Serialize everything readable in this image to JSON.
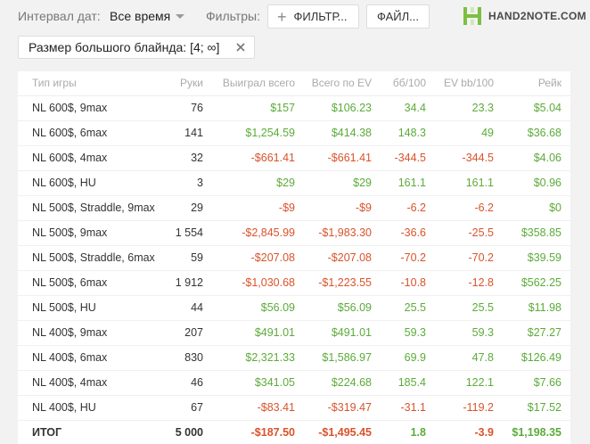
{
  "toolbar": {
    "date_label": "Интервал дат:",
    "date_value": "Все время",
    "filters_label": "Фильтры:",
    "filter_button": "ФИЛЬТР...",
    "file_button": "ФАЙЛ..."
  },
  "logo": {
    "text": "HAND2NOTE.COM"
  },
  "active_filter": {
    "label": "Размер большого блайнда: [4; ∞]"
  },
  "table": {
    "headers": [
      "Тип игры",
      "Руки",
      "Выиграл всего",
      "Всего по EV",
      "бб/100",
      "EV bb/100",
      "Рейк"
    ],
    "rows": [
      {
        "cells": [
          "NL 600$, 9max",
          "76",
          "$157",
          "$106.23",
          "34.4",
          "23.3",
          "$5.04"
        ],
        "sign": [
          "neu",
          "neu",
          "pos",
          "pos",
          "pos",
          "pos",
          "pos"
        ]
      },
      {
        "cells": [
          "NL 600$, 6max",
          "141",
          "$1,254.59",
          "$414.38",
          "148.3",
          "49",
          "$36.68"
        ],
        "sign": [
          "neu",
          "neu",
          "pos",
          "pos",
          "pos",
          "pos",
          "pos"
        ]
      },
      {
        "cells": [
          "NL 600$, 4max",
          "32",
          "-$661.41",
          "-$661.41",
          "-344.5",
          "-344.5",
          "$4.06"
        ],
        "sign": [
          "neu",
          "neu",
          "neg",
          "neg",
          "neg",
          "neg",
          "pos"
        ]
      },
      {
        "cells": [
          "NL 600$, HU",
          "3",
          "$29",
          "$29",
          "161.1",
          "161.1",
          "$0.96"
        ],
        "sign": [
          "neu",
          "neu",
          "pos",
          "pos",
          "pos",
          "pos",
          "pos"
        ]
      },
      {
        "cells": [
          "NL 500$, Straddle, 9max",
          "29",
          "-$9",
          "-$9",
          "-6.2",
          "-6.2",
          "$0"
        ],
        "sign": [
          "neu",
          "neu",
          "neg",
          "neg",
          "neg",
          "neg",
          "pos"
        ]
      },
      {
        "cells": [
          "NL 500$, 9max",
          "1 554",
          "-$2,845.99",
          "-$1,983.30",
          "-36.6",
          "-25.5",
          "$358.85"
        ],
        "sign": [
          "neu",
          "neu",
          "neg",
          "neg",
          "neg",
          "neg",
          "pos"
        ]
      },
      {
        "cells": [
          "NL 500$, Straddle, 6max",
          "59",
          "-$207.08",
          "-$207.08",
          "-70.2",
          "-70.2",
          "$39.59"
        ],
        "sign": [
          "neu",
          "neu",
          "neg",
          "neg",
          "neg",
          "neg",
          "pos"
        ]
      },
      {
        "cells": [
          "NL 500$, 6max",
          "1 912",
          "-$1,030.68",
          "-$1,223.55",
          "-10.8",
          "-12.8",
          "$562.25"
        ],
        "sign": [
          "neu",
          "neu",
          "neg",
          "neg",
          "neg",
          "neg",
          "pos"
        ]
      },
      {
        "cells": [
          "NL 500$, HU",
          "44",
          "$56.09",
          "$56.09",
          "25.5",
          "25.5",
          "$11.98"
        ],
        "sign": [
          "neu",
          "neu",
          "pos",
          "pos",
          "pos",
          "pos",
          "pos"
        ]
      },
      {
        "cells": [
          "NL 400$, 9max",
          "207",
          "$491.01",
          "$491.01",
          "59.3",
          "59.3",
          "$27.27"
        ],
        "sign": [
          "neu",
          "neu",
          "pos",
          "pos",
          "pos",
          "pos",
          "pos"
        ]
      },
      {
        "cells": [
          "NL 400$, 6max",
          "830",
          "$2,321.33",
          "$1,586.97",
          "69.9",
          "47.8",
          "$126.49"
        ],
        "sign": [
          "neu",
          "neu",
          "pos",
          "pos",
          "pos",
          "pos",
          "pos"
        ]
      },
      {
        "cells": [
          "NL 400$, 4max",
          "46",
          "$341.05",
          "$224.68",
          "185.4",
          "122.1",
          "$7.66"
        ],
        "sign": [
          "neu",
          "neu",
          "pos",
          "pos",
          "pos",
          "pos",
          "pos"
        ]
      },
      {
        "cells": [
          "NL 400$, HU",
          "67",
          "-$83.41",
          "-$319.47",
          "-31.1",
          "-119.2",
          "$17.52"
        ],
        "sign": [
          "neu",
          "neu",
          "neg",
          "neg",
          "neg",
          "neg",
          "pos"
        ]
      }
    ],
    "total": {
      "cells": [
        "ИТОГ",
        "5 000",
        "-$187.50",
        "-$1,495.45",
        "1.8",
        "-3.9",
        "$1,198.35"
      ],
      "sign": [
        "neu",
        "neu",
        "neg",
        "neg",
        "pos",
        "neg",
        "pos"
      ]
    }
  },
  "colors": {
    "positive": "#5cab3a",
    "negative": "#d9532b",
    "logo_green": "#7bc043"
  }
}
